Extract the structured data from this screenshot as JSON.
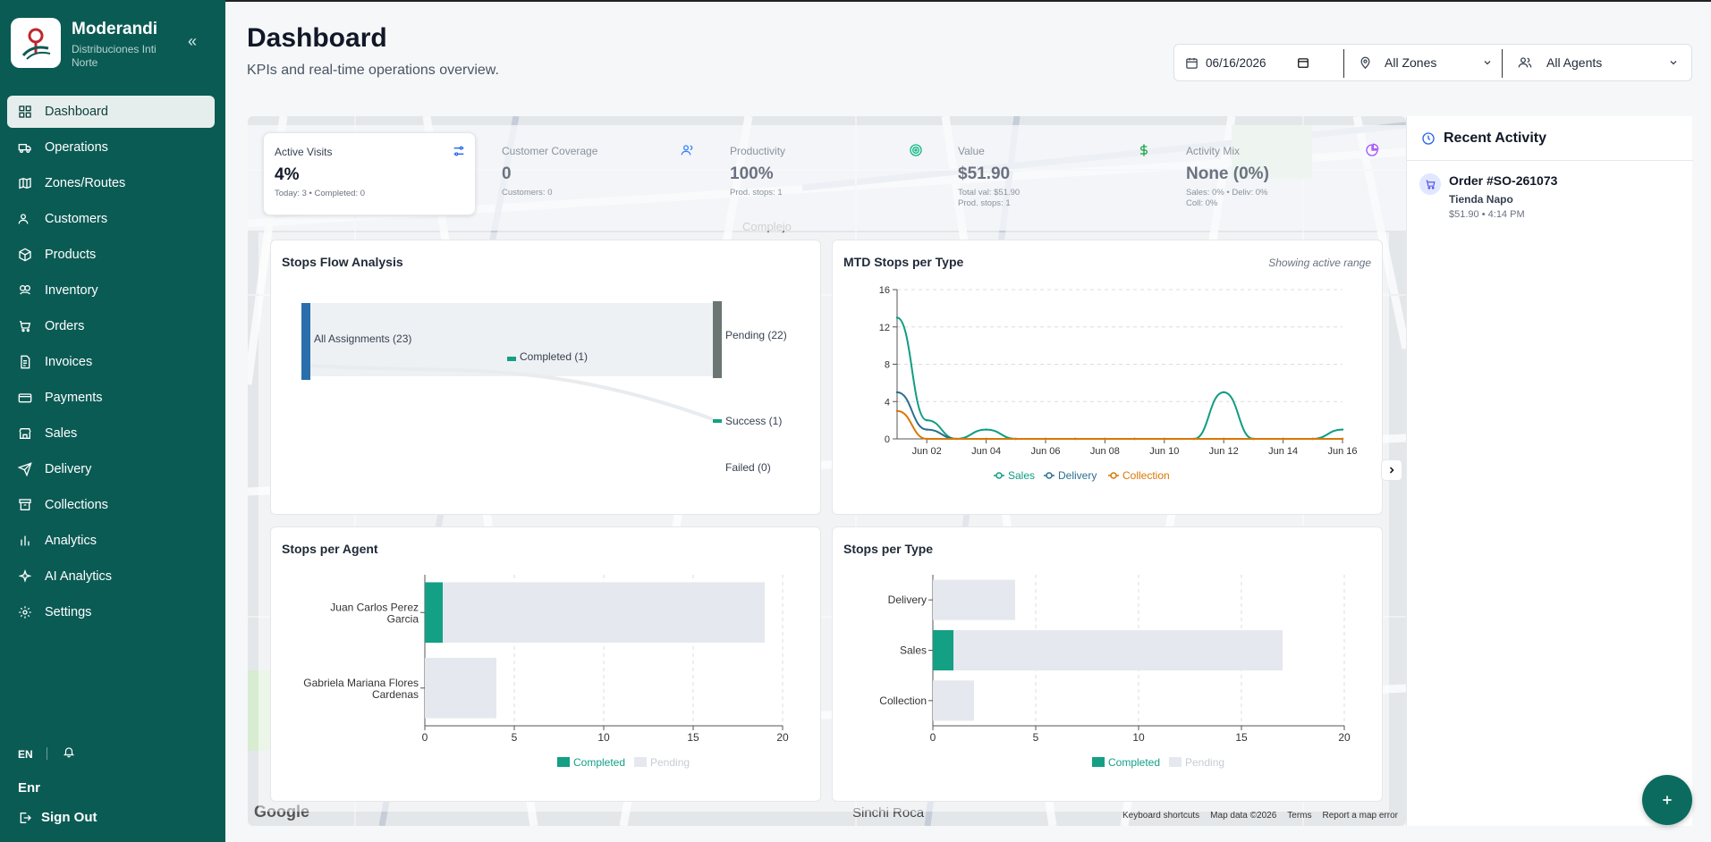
{
  "app": {
    "name": "Moderandi",
    "company": "Distribuciones Inti Norte",
    "collapse_icon": "«"
  },
  "sidebar": {
    "items": [
      {
        "label": "Dashboard",
        "icon": "dashboard-icon",
        "active": true
      },
      {
        "label": "Operations",
        "icon": "truck-icon"
      },
      {
        "label": "Zones/Routes",
        "icon": "map-icon"
      },
      {
        "label": "Customers",
        "icon": "users-icon"
      },
      {
        "label": "Products",
        "icon": "box-icon"
      },
      {
        "label": "Inventory",
        "icon": "boxes-icon"
      },
      {
        "label": "Orders",
        "icon": "cart-icon"
      },
      {
        "label": "Invoices",
        "icon": "invoice-icon"
      },
      {
        "label": "Payments",
        "icon": "wallet-icon"
      },
      {
        "label": "Sales",
        "icon": "store-icon"
      },
      {
        "label": "Delivery",
        "icon": "send-icon"
      },
      {
        "label": "Collections",
        "icon": "archive-icon"
      },
      {
        "label": "Analytics",
        "icon": "bar-chart-icon"
      },
      {
        "label": "AI Analytics",
        "icon": "sparkles-icon"
      },
      {
        "label": "Settings",
        "icon": "gear-icon"
      }
    ],
    "language": "EN",
    "user_name": "Enr",
    "sign_out": "Sign Out"
  },
  "header": {
    "title": "Dashboard",
    "subtitle": "KPIs and real-time operations overview."
  },
  "filters": {
    "date": "06/16/2026",
    "zone": "All Zones",
    "agent": "All Agents"
  },
  "kpis": [
    {
      "label": "Active Visits",
      "value": "4%",
      "sub": "Today: 3 • Completed: 0",
      "icon": "sliders-icon",
      "color": "#2563eb"
    },
    {
      "label": "Customer Coverage",
      "value": "0",
      "sub": "Customers: 0",
      "icon": "users-icon",
      "color": "#3b82f6"
    },
    {
      "label": "Productivity",
      "value": "100%",
      "sub": "Prod. stops: 1",
      "icon": "target-icon",
      "color": "#10b981"
    },
    {
      "label": "Value",
      "value": "$51.90",
      "sub": "Total val: $51.90",
      "sub2": "Prod. stops: 1",
      "icon": "dollar-icon",
      "color": "#16a34a"
    },
    {
      "label": "Activity Mix",
      "value": "None (0%)",
      "sub": "Sales: 0% • Deliv: 0%",
      "sub2": "Coll: 0%",
      "icon": "pie-icon",
      "color": "#a855f7"
    }
  ],
  "map": {
    "attribution": [
      "Keyboard shortcuts",
      "Map data ©2026",
      "Terms",
      "Report a map error"
    ],
    "provider": "Google",
    "street": "Sinchi Roca",
    "place": "Complejo"
  },
  "panels": {
    "flow": {
      "title": "Stops Flow Analysis",
      "nodes": [
        "All Assignments (23)",
        "Completed (1)",
        "Pending (22)",
        "Success (1)",
        "Failed (0)"
      ]
    },
    "mtd": {
      "title": "MTD Stops per Type",
      "note": "Showing active range"
    },
    "agent": {
      "title": "Stops per Agent"
    },
    "type": {
      "title": "Stops per Type"
    }
  },
  "chart_data": [
    {
      "type": "sankey",
      "title": "Stops Flow Analysis",
      "nodes": [
        "All Assignments (23)",
        "Completed (1)",
        "Pending (22)",
        "Success (1)",
        "Failed (0)"
      ],
      "links": [
        {
          "source": "All Assignments (23)",
          "target": "Pending (22)",
          "value": 22
        },
        {
          "source": "All Assignments (23)",
          "target": "Completed (1)",
          "value": 1
        },
        {
          "source": "Completed (1)",
          "target": "Success (1)",
          "value": 1
        },
        {
          "source": "Completed (1)",
          "target": "Failed (0)",
          "value": 0
        }
      ]
    },
    {
      "type": "line",
      "title": "MTD Stops per Type",
      "x_ticks": [
        "Jun 02",
        "Jun 04",
        "Jun 06",
        "Jun 08",
        "Jun 10",
        "Jun 12",
        "Jun 14",
        "Jun 16"
      ],
      "x": [
        "Jun 01",
        "Jun 02",
        "Jun 03",
        "Jun 04",
        "Jun 05",
        "Jun 06",
        "Jun 07",
        "Jun 08",
        "Jun 09",
        "Jun 10",
        "Jun 11",
        "Jun 12",
        "Jun 13",
        "Jun 14",
        "Jun 15",
        "Jun 16"
      ],
      "ylim": [
        0,
        16
      ],
      "y_ticks": [
        0,
        4,
        8,
        12,
        16
      ],
      "series": [
        {
          "name": "Sales",
          "color": "#0f9d82",
          "values": [
            13,
            2,
            0,
            1,
            0,
            0,
            0,
            0,
            0,
            0,
            0,
            5,
            0,
            0,
            0,
            1
          ]
        },
        {
          "name": "Delivery",
          "color": "#2a6f8e",
          "values": [
            5,
            1,
            0,
            0,
            0,
            0,
            0,
            0,
            0,
            0,
            0,
            0,
            0,
            0,
            0,
            0
          ]
        },
        {
          "name": "Collection",
          "color": "#d97706",
          "values": [
            3,
            0,
            0,
            0,
            0,
            0,
            0,
            0,
            0,
            0,
            0,
            0,
            0,
            0,
            0,
            0
          ]
        }
      ]
    },
    {
      "type": "bar",
      "orientation": "horizontal",
      "title": "Stops per Agent",
      "categories": [
        "Juan Carlos Perez Garcia",
        "Gabriela Mariana Flores Cardenas"
      ],
      "xlim": [
        0,
        20
      ],
      "x_ticks": [
        0,
        5,
        10,
        15,
        20
      ],
      "series": [
        {
          "name": "Completed",
          "color": "#14a085",
          "values": [
            1,
            0
          ]
        },
        {
          "name": "Pending",
          "color": "#e5e8ee",
          "values": [
            18,
            4
          ]
        }
      ]
    },
    {
      "type": "bar",
      "orientation": "horizontal",
      "title": "Stops per Type",
      "categories": [
        "Delivery",
        "Sales",
        "Collection"
      ],
      "xlim": [
        0,
        20
      ],
      "x_ticks": [
        0,
        5,
        10,
        15,
        20
      ],
      "series": [
        {
          "name": "Completed",
          "color": "#14a085",
          "values": [
            0,
            1,
            0
          ]
        },
        {
          "name": "Pending",
          "color": "#e5e8ee",
          "values": [
            4,
            16,
            2
          ]
        }
      ]
    }
  ],
  "activity": {
    "title": "Recent Activity",
    "items": [
      {
        "title": "Order #SO-261073",
        "customer": "Tienda Napo",
        "amount": "$51.90",
        "time": "4:14 PM"
      }
    ]
  }
}
